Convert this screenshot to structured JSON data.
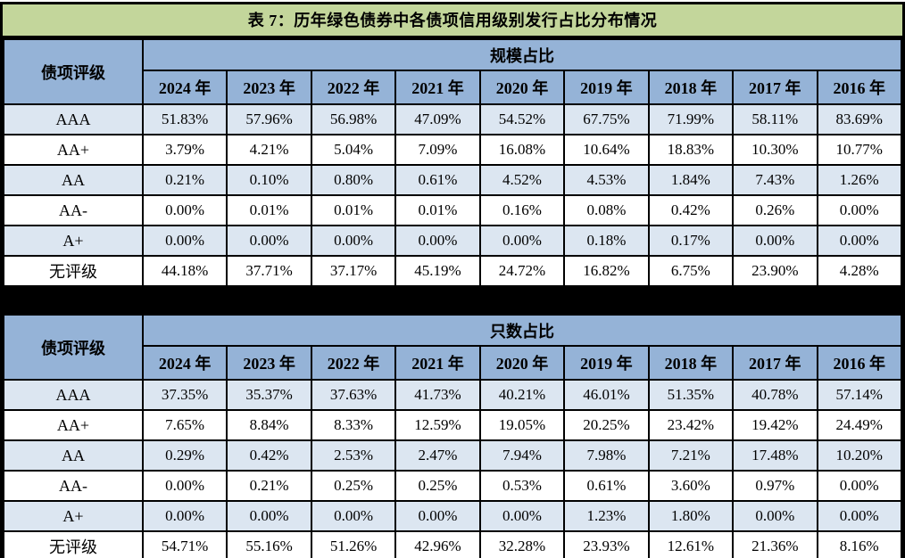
{
  "title": "表 7：历年绿色债券中各债项信用级别发行占比分布情况",
  "column_header": "债项评级",
  "years": [
    "2024 年",
    "2023 年",
    "2022 年",
    "2021 年",
    "2020 年",
    "2019 年",
    "2018 年",
    "2017 年",
    "2016 年"
  ],
  "tables": [
    {
      "group_label": "规模占比",
      "rows": [
        {
          "label": "AAA",
          "values": [
            "51.83%",
            "57.96%",
            "56.98%",
            "47.09%",
            "54.52%",
            "67.75%",
            "71.99%",
            "58.11%",
            "83.69%"
          ]
        },
        {
          "label": "AA+",
          "values": [
            "3.79%",
            "4.21%",
            "5.04%",
            "7.09%",
            "16.08%",
            "10.64%",
            "18.83%",
            "10.30%",
            "10.77%"
          ]
        },
        {
          "label": "AA",
          "values": [
            "0.21%",
            "0.10%",
            "0.80%",
            "0.61%",
            "4.52%",
            "4.53%",
            "1.84%",
            "7.43%",
            "1.26%"
          ]
        },
        {
          "label": "AA-",
          "values": [
            "0.00%",
            "0.01%",
            "0.01%",
            "0.01%",
            "0.16%",
            "0.08%",
            "0.42%",
            "0.26%",
            "0.00%"
          ]
        },
        {
          "label": "A+",
          "values": [
            "0.00%",
            "0.00%",
            "0.00%",
            "0.00%",
            "0.00%",
            "0.18%",
            "0.17%",
            "0.00%",
            "0.00%"
          ]
        },
        {
          "label": "无评级",
          "values": [
            "44.18%",
            "37.71%",
            "37.17%",
            "45.19%",
            "24.72%",
            "16.82%",
            "6.75%",
            "23.90%",
            "4.28%"
          ]
        }
      ]
    },
    {
      "group_label": "只数占比",
      "rows": [
        {
          "label": "AAA",
          "values": [
            "37.35%",
            "35.37%",
            "37.63%",
            "41.73%",
            "40.21%",
            "46.01%",
            "51.35%",
            "40.78%",
            "57.14%"
          ]
        },
        {
          "label": "AA+",
          "values": [
            "7.65%",
            "8.84%",
            "8.33%",
            "12.59%",
            "19.05%",
            "20.25%",
            "23.42%",
            "19.42%",
            "24.49%"
          ]
        },
        {
          "label": "AA",
          "values": [
            "0.29%",
            "0.42%",
            "2.53%",
            "2.47%",
            "7.94%",
            "7.98%",
            "7.21%",
            "17.48%",
            "10.20%"
          ]
        },
        {
          "label": "AA-",
          "values": [
            "0.00%",
            "0.21%",
            "0.25%",
            "0.25%",
            "0.53%",
            "0.61%",
            "3.60%",
            "0.97%",
            "0.00%"
          ]
        },
        {
          "label": "A+",
          "values": [
            "0.00%",
            "0.00%",
            "0.00%",
            "0.00%",
            "0.00%",
            "1.23%",
            "1.80%",
            "0.00%",
            "0.00%"
          ]
        },
        {
          "label": "无评级",
          "values": [
            "54.71%",
            "55.16%",
            "51.26%",
            "42.96%",
            "32.28%",
            "23.93%",
            "12.61%",
            "21.36%",
            "8.16%"
          ]
        }
      ]
    }
  ],
  "colors": {
    "title_bg": "#c3d69b",
    "header_bg": "#95b3d7",
    "row_alt_bg": "#dce6f1",
    "row_bg": "#ffffff",
    "border": "#000000",
    "text": "#000000"
  },
  "chart_data": [
    {
      "type": "table",
      "title": "规模占比",
      "row_header": "债项评级",
      "columns": [
        "2024年",
        "2023年",
        "2022年",
        "2021年",
        "2020年",
        "2019年",
        "2018年",
        "2017年",
        "2016年"
      ],
      "unit": "%",
      "rows": [
        {
          "name": "AAA",
          "values": [
            51.83,
            57.96,
            56.98,
            47.09,
            54.52,
            67.75,
            71.99,
            58.11,
            83.69
          ]
        },
        {
          "name": "AA+",
          "values": [
            3.79,
            4.21,
            5.04,
            7.09,
            16.08,
            10.64,
            18.83,
            10.3,
            10.77
          ]
        },
        {
          "name": "AA",
          "values": [
            0.21,
            0.1,
            0.8,
            0.61,
            4.52,
            4.53,
            1.84,
            7.43,
            1.26
          ]
        },
        {
          "name": "AA-",
          "values": [
            0.0,
            0.01,
            0.01,
            0.01,
            0.16,
            0.08,
            0.42,
            0.26,
            0.0
          ]
        },
        {
          "name": "A+",
          "values": [
            0.0,
            0.0,
            0.0,
            0.0,
            0.0,
            0.18,
            0.17,
            0.0,
            0.0
          ]
        },
        {
          "name": "无评级",
          "values": [
            44.18,
            37.71,
            37.17,
            45.19,
            24.72,
            16.82,
            6.75,
            23.9,
            4.28
          ]
        }
      ]
    },
    {
      "type": "table",
      "title": "只数占比",
      "row_header": "债项评级",
      "columns": [
        "2024年",
        "2023年",
        "2022年",
        "2021年",
        "2020年",
        "2019年",
        "2018年",
        "2017年",
        "2016年"
      ],
      "unit": "%",
      "rows": [
        {
          "name": "AAA",
          "values": [
            37.35,
            35.37,
            37.63,
            41.73,
            40.21,
            46.01,
            51.35,
            40.78,
            57.14
          ]
        },
        {
          "name": "AA+",
          "values": [
            7.65,
            8.84,
            8.33,
            12.59,
            19.05,
            20.25,
            23.42,
            19.42,
            24.49
          ]
        },
        {
          "name": "AA",
          "values": [
            0.29,
            0.42,
            2.53,
            2.47,
            7.94,
            7.98,
            7.21,
            17.48,
            10.2
          ]
        },
        {
          "name": "AA-",
          "values": [
            0.0,
            0.21,
            0.25,
            0.25,
            0.53,
            0.61,
            3.6,
            0.97,
            0.0
          ]
        },
        {
          "name": "A+",
          "values": [
            0.0,
            0.0,
            0.0,
            0.0,
            0.0,
            1.23,
            1.8,
            0.0,
            0.0
          ]
        },
        {
          "name": "无评级",
          "values": [
            54.71,
            55.16,
            51.26,
            42.96,
            32.28,
            23.93,
            12.61,
            21.36,
            8.16
          ]
        }
      ]
    }
  ]
}
